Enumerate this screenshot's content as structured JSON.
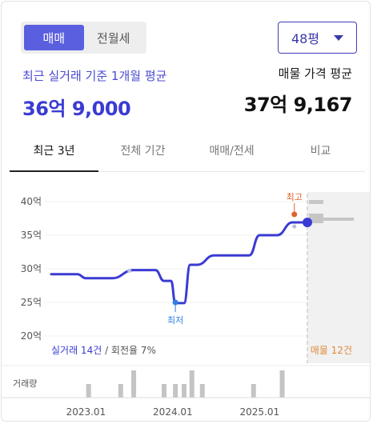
{
  "toggle": {
    "sale_label": "매매",
    "rent_label": "전월세"
  },
  "size_select": {
    "value": "48평"
  },
  "summary": {
    "recent_label": "최근 실거래 기준 1개월 평균",
    "recent_price": "36억 9,000",
    "listing_label": "매물 가격 평균",
    "listing_price": "37억 9,167"
  },
  "tabs": [
    {
      "label": "최근 3년",
      "active": true
    },
    {
      "label": "전체 기간",
      "active": false
    },
    {
      "label": "매매/전세",
      "active": false
    },
    {
      "label": "비교",
      "active": false
    }
  ],
  "chart_data": {
    "type": "line",
    "y_ticks": [
      "40억",
      "35억",
      "30억",
      "25억",
      "20억"
    ],
    "ylim": [
      20,
      41
    ],
    "x_ticks": [
      "2023.01",
      "2024.01",
      "2025.01"
    ],
    "series": [
      {
        "name": "실거래",
        "color": "#3b3bd4",
        "points": [
          [
            2022.6,
            29.2
          ],
          [
            2022.9,
            29.2
          ],
          [
            2023.0,
            28.6
          ],
          [
            2023.3,
            28.6
          ],
          [
            2023.55,
            29.8
          ],
          [
            2023.8,
            29.8
          ],
          [
            2023.9,
            28.2
          ],
          [
            2023.98,
            28.2
          ],
          [
            2024.03,
            24.9
          ],
          [
            2024.13,
            24.9
          ],
          [
            2024.2,
            30.6
          ],
          [
            2024.28,
            30.6
          ],
          [
            2024.48,
            32.0
          ],
          [
            2024.88,
            32.0
          ],
          [
            2025.0,
            35.0
          ],
          [
            2025.2,
            35.0
          ],
          [
            2025.38,
            36.9
          ],
          [
            2025.55,
            36.9
          ]
        ]
      }
    ],
    "annotations": {
      "max_label": "최고",
      "min_label": "최저"
    },
    "bottom_left_caption": {
      "count": "실거래 14건",
      "rate": " / 회전율 7%"
    },
    "bottom_right_caption": "매물 12건",
    "volume_label": "거래량",
    "volume": [
      [
        2023.03,
        1
      ],
      [
        2023.4,
        1
      ],
      [
        2023.55,
        2
      ],
      [
        2023.9,
        1
      ],
      [
        2024.03,
        1
      ],
      [
        2024.13,
        1
      ],
      [
        2024.22,
        2
      ],
      [
        2024.34,
        1
      ],
      [
        2024.93,
        1
      ],
      [
        2025.26,
        2
      ]
    ]
  }
}
